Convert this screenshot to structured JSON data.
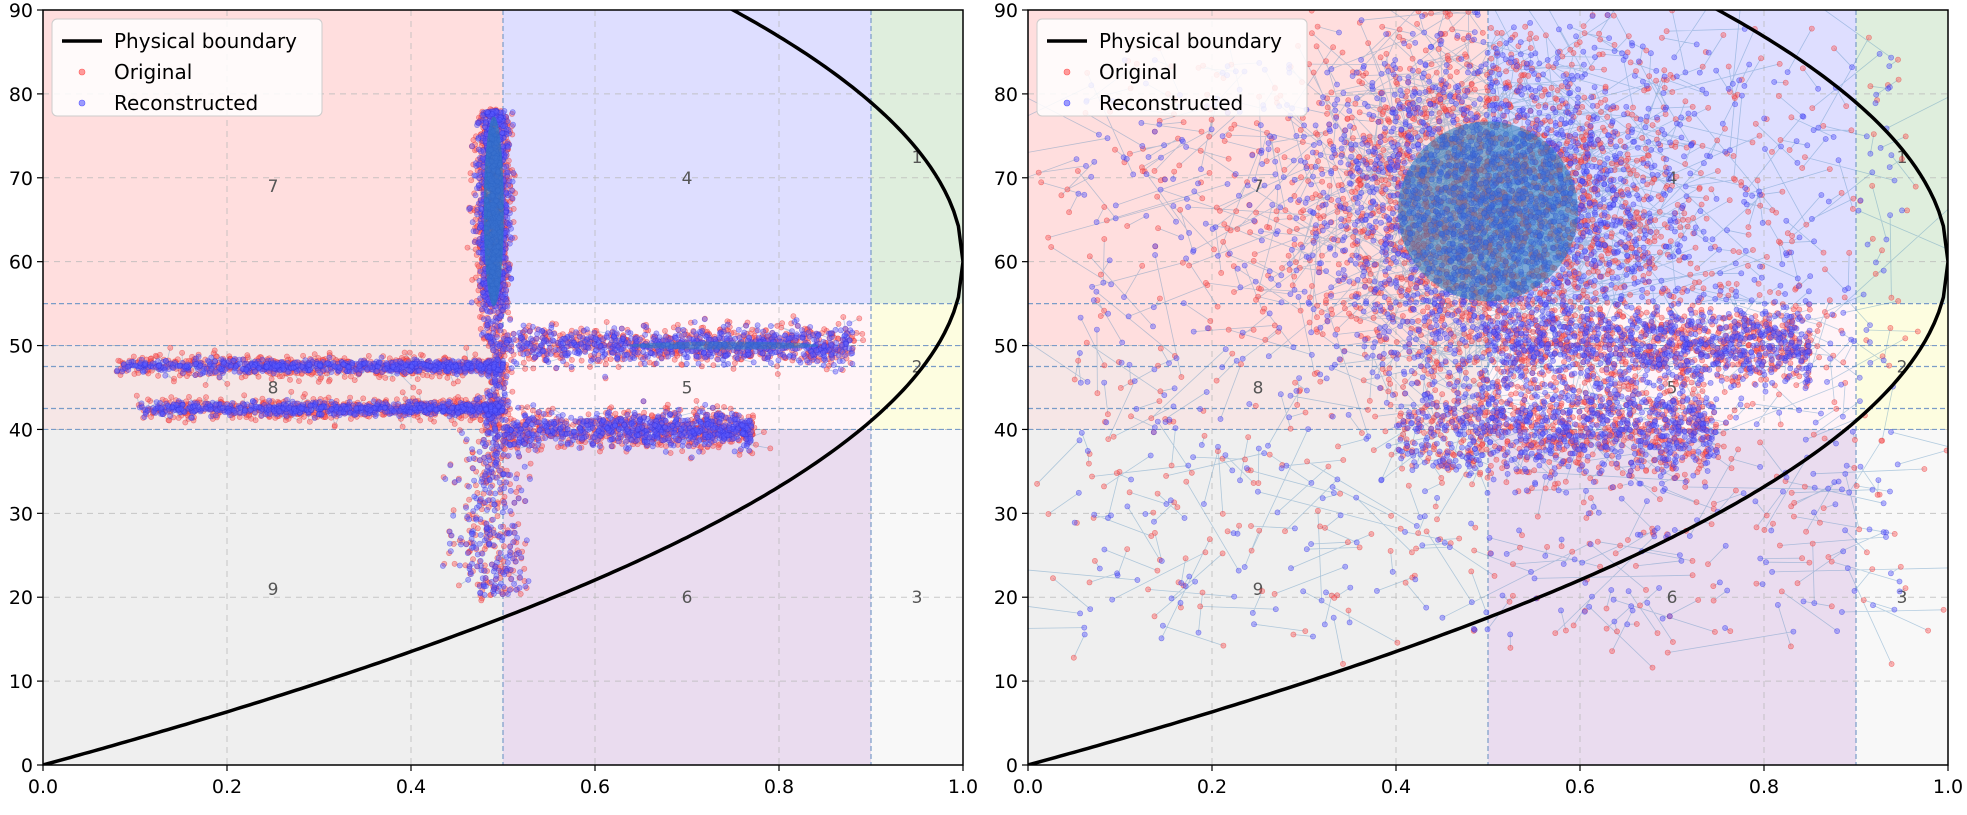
{
  "chart_data": [
    {
      "type": "scatter",
      "xlim": [
        0.0,
        1.0
      ],
      "ylim": [
        0,
        90
      ],
      "x_ticks": [
        "0.0",
        "0.2",
        "0.4",
        "0.6",
        "0.8",
        "1.0"
      ],
      "y_ticks": [
        "0",
        "10",
        "20",
        "30",
        "40",
        "50",
        "60",
        "70",
        "80",
        "90"
      ],
      "grid": true,
      "legend_position": "top-left",
      "legend": [
        {
          "label": "Physical boundary",
          "kind": "line",
          "color": "#000000"
        },
        {
          "label": "Original",
          "kind": "marker",
          "color": "#ff5a5a"
        },
        {
          "label": "Reconstructed",
          "kind": "marker",
          "color": "#5a5aff"
        }
      ],
      "boundary": {
        "description_y_at_x0": 0,
        "y_max_at_x1": 60,
        "vertex_x": 1.0
      },
      "regions": [
        {
          "id": "1",
          "x": [
            0.9,
            1.0
          ],
          "y": [
            55,
            90
          ],
          "color": "#dfeedd"
        },
        {
          "id": "2",
          "x": [
            0.9,
            1.0
          ],
          "y": [
            40,
            55
          ],
          "color": "#fdfde0"
        },
        {
          "id": "3",
          "x": [
            0.9,
            1.0
          ],
          "y": [
            0,
            40
          ],
          "color": "#f8f8f8"
        },
        {
          "id": "4",
          "x": [
            0.5,
            0.9
          ],
          "y": [
            55,
            90
          ],
          "color": "#dedeff"
        },
        {
          "id": "5",
          "x": [
            0.5,
            0.9
          ],
          "y": [
            40,
            55
          ],
          "color": "#fff4f8"
        },
        {
          "id": "6",
          "x": [
            0.5,
            0.9
          ],
          "y": [
            0,
            40
          ],
          "color": "#eadcef"
        },
        {
          "id": "7",
          "x": [
            0.0,
            0.5
          ],
          "y": [
            50,
            90
          ],
          "color": "#ffdede"
        },
        {
          "id": "8",
          "x": [
            0.0,
            0.5
          ],
          "y": [
            40,
            50
          ],
          "color": "#f6e6e6"
        },
        {
          "id": "9",
          "x": [
            0.0,
            0.5
          ],
          "y": [
            0,
            40
          ],
          "color": "#efefef"
        }
      ],
      "region_labels": [
        {
          "text": "1",
          "x": 0.95,
          "y": 72.5
        },
        {
          "text": "2",
          "x": 0.95,
          "y": 47.5
        },
        {
          "text": "3",
          "x": 0.95,
          "y": 20
        },
        {
          "text": "4",
          "x": 0.7,
          "y": 70
        },
        {
          "text": "5",
          "x": 0.7,
          "y": 45
        },
        {
          "text": "6",
          "x": 0.7,
          "y": 20
        },
        {
          "text": "7",
          "x": 0.25,
          "y": 69
        },
        {
          "text": "8",
          "x": 0.25,
          "y": 45
        },
        {
          "text": "9",
          "x": 0.25,
          "y": 21
        }
      ],
      "dashed_threshold_x": [
        0.5,
        0.9
      ],
      "dashed_threshold_y": [
        40,
        42.5,
        47.5,
        50,
        55
      ],
      "clusters": [
        {
          "shape": "vertical",
          "x": 0.49,
          "x_spread": 0.008,
          "y": [
            20,
            78
          ],
          "dense_y": [
            55,
            78
          ]
        },
        {
          "shape": "horizontal",
          "y": 50,
          "y_spread": 1.0,
          "x": [
            0.5,
            0.88
          ]
        },
        {
          "shape": "horizontal",
          "y": 40,
          "y_spread": 1.0,
          "x": [
            0.5,
            0.77
          ]
        },
        {
          "shape": "horizontal",
          "y": 47.5,
          "y_spread": 0.4,
          "x": [
            0.08,
            0.5
          ]
        },
        {
          "shape": "horizontal",
          "y": 42.5,
          "y_spread": 0.4,
          "x": [
            0.1,
            0.5
          ]
        }
      ]
    },
    {
      "type": "scatter",
      "xlim": [
        0.0,
        1.0
      ],
      "ylim": [
        0,
        90
      ],
      "x_ticks": [
        "0.0",
        "0.2",
        "0.4",
        "0.6",
        "0.8",
        "1.0"
      ],
      "y_ticks": [
        "0",
        "10",
        "20",
        "30",
        "40",
        "50",
        "60",
        "70",
        "80",
        "90"
      ],
      "grid": true,
      "legend_position": "top-left",
      "legend": [
        {
          "label": "Physical boundary",
          "kind": "line",
          "color": "#000000"
        },
        {
          "label": "Original",
          "kind": "marker",
          "color": "#ff5a5a"
        },
        {
          "label": "Reconstructed",
          "kind": "marker",
          "color": "#5a5aff"
        }
      ],
      "region_labels": [
        {
          "text": "1",
          "x": 0.95,
          "y": 72.5
        },
        {
          "text": "2",
          "x": 0.95,
          "y": 47.5
        },
        {
          "text": "3",
          "x": 0.95,
          "y": 20
        },
        {
          "text": "4",
          "x": 0.7,
          "y": 70
        },
        {
          "text": "5",
          "x": 0.7,
          "y": 45
        },
        {
          "text": "6",
          "x": 0.7,
          "y": 20
        },
        {
          "text": "7",
          "x": 0.25,
          "y": 69
        },
        {
          "text": "8",
          "x": 0.25,
          "y": 45
        },
        {
          "text": "9",
          "x": 0.25,
          "y": 21
        }
      ],
      "clusters": [
        {
          "shape": "blob",
          "x": 0.5,
          "x_spread": 0.1,
          "y": 66,
          "y_spread": 10
        },
        {
          "shape": "horizontal",
          "y": 50,
          "y_spread": 2.5,
          "x": [
            0.5,
            0.85
          ]
        },
        {
          "shape": "horizontal",
          "y": 40,
          "y_spread": 3,
          "x": [
            0.4,
            0.75
          ]
        },
        {
          "shape": "scatter",
          "x": [
            0.05,
            0.95
          ],
          "y": [
            15,
            85
          ]
        }
      ]
    }
  ]
}
